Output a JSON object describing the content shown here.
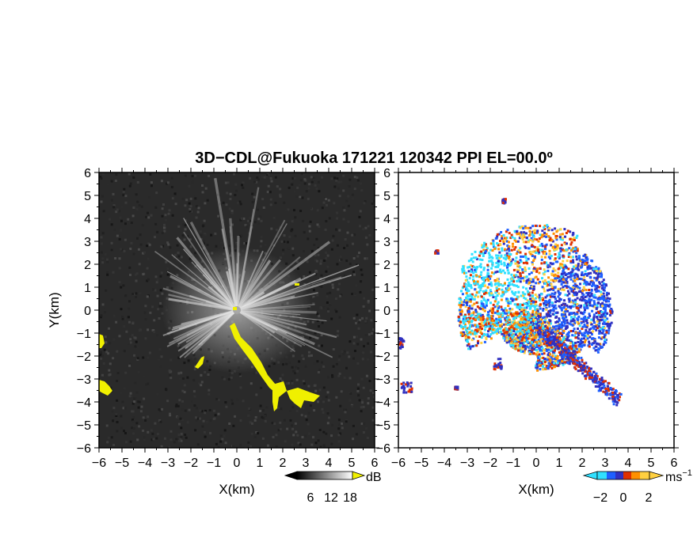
{
  "chart_data": {
    "type": "heatmap",
    "title": "3D−CDL@Fukuoka 171221 120342 PPI EL=00.0º",
    "panels": [
      {
        "id": "reflectivity",
        "xlabel": "X(km)",
        "ylabel": "Y(km)",
        "xlim": [
          -6,
          6
        ],
        "ylim": [
          -6,
          6
        ],
        "xticks": [
          "−6",
          "−5",
          "−4",
          "−3",
          "−2",
          "−1",
          "0",
          "1",
          "2",
          "3",
          "4",
          "5",
          "6"
        ],
        "yticks": [
          "6",
          "5",
          "4",
          "3",
          "2",
          "1",
          "0",
          "−1",
          "−2",
          "−3",
          "−4",
          "−5",
          "−6"
        ],
        "background_color": "#2a2a2a",
        "echo_color": "#f0f000",
        "colorbar": {
          "unit": "dB",
          "ticks": [
            "6",
            "12",
            "18"
          ],
          "range": [
            0,
            24
          ],
          "colors": [
            "#000000",
            "#ffffff"
          ]
        }
      },
      {
        "id": "doppler_velocity",
        "xlabel": "X(km)",
        "ylabel": "",
        "xlim": [
          -6,
          6
        ],
        "ylim": [
          -6,
          6
        ],
        "xticks": [
          "−6",
          "−5",
          "−4",
          "−3",
          "−2",
          "−1",
          "0",
          "1",
          "2",
          "3",
          "4",
          "5",
          "6"
        ],
        "yticks": [
          "6",
          "5",
          "4",
          "3",
          "2",
          "1",
          "0",
          "−1",
          "−2",
          "−3",
          "−4",
          "−5",
          "−6"
        ],
        "background_color": "#ffffff",
        "colorbar": {
          "unit": "ms",
          "unit_exp": "−1",
          "ticks": [
            "−2",
            "0",
            "2"
          ],
          "range": [
            -3,
            3
          ],
          "colors": [
            "#30e0ff",
            "#1e60ff",
            "#3030c0",
            "#e03000",
            "#ff9000",
            "#ffd040"
          ]
        }
      }
    ]
  }
}
